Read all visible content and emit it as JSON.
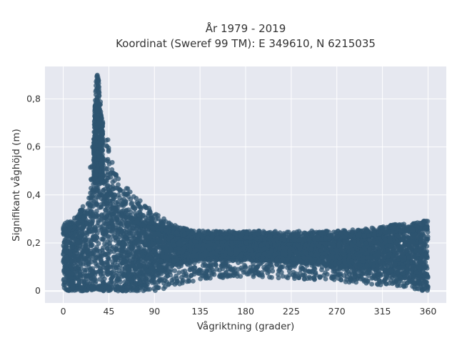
{
  "chart_data": {
    "type": "scatter",
    "title": "År 1979 - 2019",
    "subtitle": "Koordinat (Sweref 99 TM): E 349610, N 6215035",
    "xlabel": "Vågriktning (grader)",
    "ylabel": "Signifikant våghöjd (m)",
    "xlim": [
      -18,
      378
    ],
    "ylim": [
      -0.05,
      0.935
    ],
    "xticks": [
      0,
      45,
      90,
      135,
      180,
      225,
      270,
      315,
      360
    ],
    "xtick_labels": [
      "0",
      "45",
      "90",
      "135",
      "180",
      "225",
      "270",
      "315",
      "360"
    ],
    "yticks": [
      0,
      0.2,
      0.4,
      0.6,
      0.8
    ],
    "ytick_labels": [
      "0",
      "0,2",
      "0,4",
      "0,6",
      "0,8"
    ],
    "grid": true,
    "legend": "none",
    "marker_color": "#2e5470",
    "plot_background": "#e6e8f0",
    "envelope": {
      "description_x_deg": [
        0,
        10,
        20,
        25,
        30,
        33,
        35,
        38,
        42,
        45,
        50,
        55,
        60,
        70,
        80,
        90,
        100,
        110,
        120,
        135,
        180,
        225,
        270,
        300,
        315,
        330,
        345,
        355,
        360
      ],
      "upper_m": [
        0.28,
        0.3,
        0.36,
        0.45,
        0.66,
        0.92,
        0.88,
        0.72,
        0.66,
        0.62,
        0.5,
        0.47,
        0.46,
        0.4,
        0.36,
        0.33,
        0.3,
        0.28,
        0.26,
        0.25,
        0.25,
        0.25,
        0.25,
        0.26,
        0.27,
        0.28,
        0.28,
        0.3,
        0.29
      ],
      "dense_upper_m": [
        0.24,
        0.26,
        0.3,
        0.34,
        0.42,
        0.48,
        0.48,
        0.46,
        0.44,
        0.42,
        0.38,
        0.35,
        0.32,
        0.29,
        0.27,
        0.26,
        0.25,
        0.24,
        0.23,
        0.22,
        0.22,
        0.21,
        0.22,
        0.23,
        0.24,
        0.25,
        0.25,
        0.26,
        0.26
      ],
      "dense_lower_m": [
        0.02,
        0.02,
        0.02,
        0.02,
        0.02,
        0.02,
        0.02,
        0.02,
        0.02,
        0.02,
        0.02,
        0.02,
        0.02,
        0.03,
        0.04,
        0.05,
        0.08,
        0.11,
        0.12,
        0.13,
        0.13,
        0.12,
        0.1,
        0.09,
        0.08,
        0.06,
        0.04,
        0.03,
        0.02
      ],
      "sparse_lower_m": [
        0.0,
        0.0,
        0.0,
        0.0,
        0.0,
        0.0,
        0.0,
        0.0,
        0.0,
        0.0,
        0.0,
        0.0,
        0.0,
        0.0,
        0.0,
        0.0,
        0.0,
        0.02,
        0.03,
        0.05,
        0.06,
        0.05,
        0.04,
        0.03,
        0.02,
        0.02,
        0.01,
        0.0,
        0.0
      ]
    }
  }
}
